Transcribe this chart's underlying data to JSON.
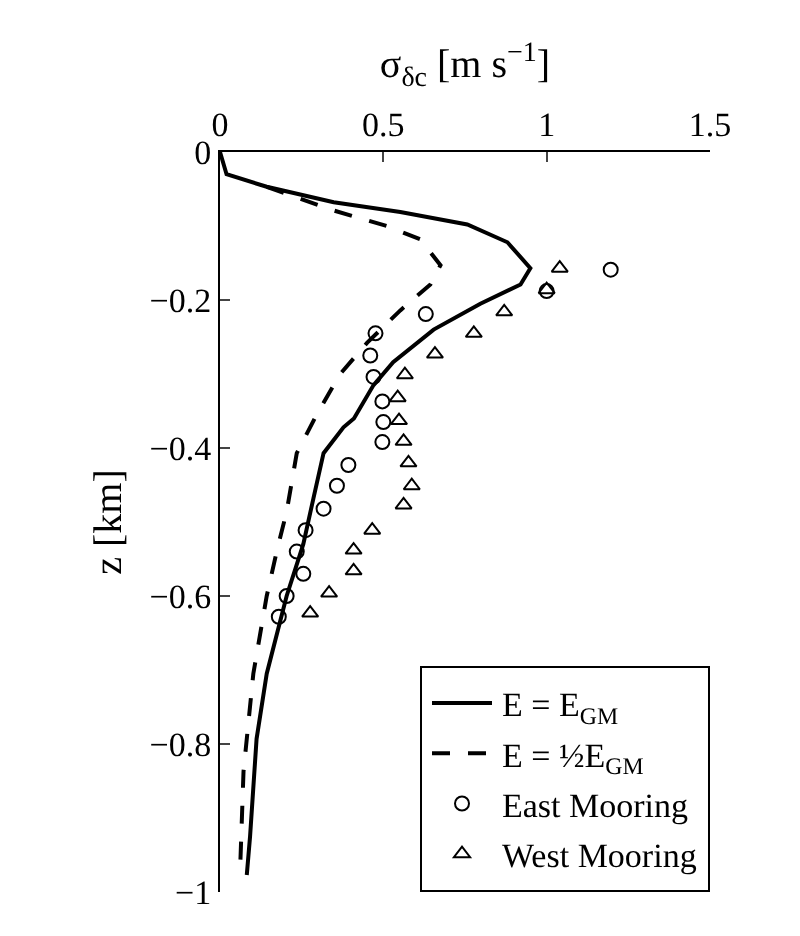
{
  "chart_data": {
    "type": "line",
    "xlabel": "σ$_{δc}$ [m s$^{−1}$]",
    "ylabel": "z [km]",
    "xlim": [
      0,
      1.5
    ],
    "xticks": [
      0,
      0.5,
      1,
      1.5
    ],
    "ylim": [
      -1,
      0
    ],
    "yticks": [
      0,
      {
        "value": -0.2,
        "label": "−0.2"
      },
      {
        "value": -0.4,
        "label": "−0.4"
      },
      {
        "value": -0.6,
        "label": "−0.6"
      },
      {
        "value": -0.8,
        "label": "−0.8"
      },
      {
        "value": -1,
        "label": "−1"
      }
    ],
    "grid": false,
    "legend": "bottom right",
    "series": [
      {
        "name": "E = E$_{GM}$",
        "line_style": "solid",
        "marker": "none",
        "color": "#000000",
        "x": [
          0,
          0.02,
          0.143,
          0.348,
          0.552,
          0.757,
          0.88,
          0.95,
          0.92,
          0.797,
          0.654,
          0.53,
          0.47,
          0.41,
          0.378,
          0.317,
          0.286,
          0.255,
          0.204,
          0.143,
          0.112,
          0.092,
          0.082
        ],
        "values": [
          0,
          -0.03,
          -0.047,
          -0.068,
          -0.081,
          -0.098,
          -0.122,
          -0.157,
          -0.179,
          -0.205,
          -0.24,
          -0.284,
          -0.315,
          -0.36,
          -0.372,
          -0.407,
          -0.468,
          -0.53,
          -0.6,
          -0.705,
          -0.793,
          -0.925,
          -0.977
        ]
      },
      {
        "name": "E = ½E$_{GM}$",
        "line_style": "dashed",
        "marker": "none",
        "color": "#000000",
        "x": [
          0.143,
          0.348,
          0.51,
          0.613,
          0.675,
          0.644,
          0.552,
          0.45,
          0.368,
          0.297,
          0.235,
          0.204,
          0.174,
          0.143,
          0.102,
          0.072,
          0.061
        ],
        "values": [
          -0.047,
          -0.079,
          -0.1,
          -0.118,
          -0.153,
          -0.179,
          -0.214,
          -0.258,
          -0.3,
          -0.354,
          -0.407,
          -0.486,
          -0.539,
          -0.6,
          -0.705,
          -0.837,
          -0.977
        ]
      },
      {
        "name": "East Mooring",
        "type": "scatter",
        "marker": "circle",
        "color": "#000000",
        "x": [
          1.196,
          1.0,
          0.63,
          0.476,
          0.46,
          0.47,
          0.497,
          0.5,
          0.497,
          0.393,
          0.358,
          0.317,
          0.262,
          0.235,
          0.255,
          0.204,
          0.18
        ],
        "values": [
          -0.159,
          -0.188,
          -0.219,
          -0.245,
          -0.275,
          -0.304,
          -0.337,
          -0.365,
          -0.392,
          -0.423,
          -0.451,
          -0.482,
          -0.511,
          -0.54,
          -0.57,
          -0.6,
          -0.628
        ]
      },
      {
        "name": "West Mooring",
        "type": "scatter",
        "marker": "triangle",
        "color": "#000000",
        "x": [
          1.04,
          1.0,
          0.87,
          0.777,
          0.658,
          0.566,
          0.544,
          0.548,
          0.562,
          0.577,
          0.587,
          0.562,
          0.466,
          0.409,
          0.409,
          0.334,
          0.276
        ],
        "values": [
          -0.157,
          -0.186,
          -0.216,
          -0.245,
          -0.273,
          -0.301,
          -0.332,
          -0.363,
          -0.391,
          -0.42,
          -0.451,
          -0.477,
          -0.511,
          -0.538,
          -0.566,
          -0.596,
          -0.623
        ]
      }
    ]
  }
}
